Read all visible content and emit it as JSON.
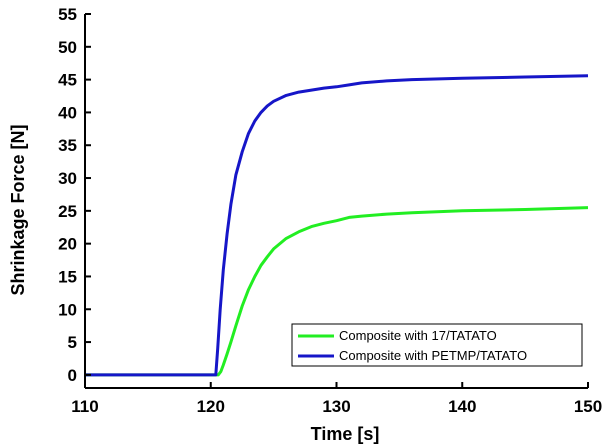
{
  "chart_data": {
    "type": "line",
    "title": "",
    "xlabel": "Time [s]",
    "ylabel": "Shrinkage Force [N]",
    "xlim": [
      110,
      150
    ],
    "ylim": [
      -2,
      55
    ],
    "xticks": [
      110,
      120,
      130,
      140,
      150
    ],
    "yticks": [
      0,
      5,
      10,
      15,
      20,
      25,
      30,
      35,
      40,
      45,
      50,
      55
    ],
    "legend_position": "bottom-right",
    "series": [
      {
        "name": "Composite with 17/TATATO",
        "color": "#22ee22",
        "points": [
          [
            110,
            0
          ],
          [
            120.6,
            0
          ],
          [
            120.8,
            0.5
          ],
          [
            121,
            1.5
          ],
          [
            121.3,
            3.2
          ],
          [
            121.6,
            5
          ],
          [
            122,
            7.5
          ],
          [
            122.5,
            10.5
          ],
          [
            123,
            13
          ],
          [
            123.5,
            15
          ],
          [
            124,
            16.7
          ],
          [
            124.5,
            18
          ],
          [
            125,
            19.2
          ],
          [
            126,
            20.8
          ],
          [
            127,
            21.8
          ],
          [
            128,
            22.6
          ],
          [
            129,
            23.1
          ],
          [
            130,
            23.5
          ],
          [
            131,
            24
          ],
          [
            132,
            24.2
          ],
          [
            134,
            24.5
          ],
          [
            136,
            24.7
          ],
          [
            140,
            25
          ],
          [
            145,
            25.2
          ],
          [
            150,
            25.5
          ]
        ]
      },
      {
        "name": "Composite with PETMP/TATATO",
        "color": "#1616c8",
        "points": [
          [
            110,
            0
          ],
          [
            120.4,
            0
          ],
          [
            120.55,
            4
          ],
          [
            120.75,
            10
          ],
          [
            121,
            16
          ],
          [
            121.3,
            21.5
          ],
          [
            121.6,
            26
          ],
          [
            122,
            30.5
          ],
          [
            122.5,
            34
          ],
          [
            123,
            36.8
          ],
          [
            123.5,
            38.7
          ],
          [
            124,
            40
          ],
          [
            124.5,
            41
          ],
          [
            125,
            41.7
          ],
          [
            126,
            42.6
          ],
          [
            127,
            43.1
          ],
          [
            128,
            43.4
          ],
          [
            129,
            43.7
          ],
          [
            130,
            43.9
          ],
          [
            131,
            44.2
          ],
          [
            132,
            44.5
          ],
          [
            134,
            44.8
          ],
          [
            136,
            45
          ],
          [
            140,
            45.2
          ],
          [
            145,
            45.4
          ],
          [
            150,
            45.6
          ]
        ]
      }
    ]
  }
}
